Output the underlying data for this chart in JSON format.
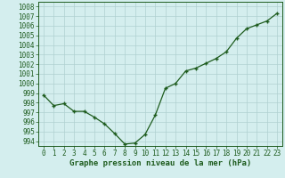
{
  "x": [
    0,
    1,
    2,
    3,
    4,
    5,
    6,
    7,
    8,
    9,
    10,
    11,
    12,
    13,
    14,
    15,
    16,
    17,
    18,
    19,
    20,
    21,
    22,
    23
  ],
  "y": [
    998.8,
    997.7,
    997.9,
    997.1,
    997.1,
    996.5,
    995.8,
    994.8,
    993.7,
    993.8,
    994.7,
    996.7,
    999.5,
    1000.0,
    1001.3,
    1001.6,
    1002.1,
    1002.6,
    1003.3,
    1004.7,
    1005.7,
    1006.1,
    1006.5,
    1007.3
  ],
  "line_color": "#1e5c1e",
  "marker_color": "#1e5c1e",
  "bg_color": "#d4eeee",
  "grid_color": "#b0d0d0",
  "xlabel": "Graphe pression niveau de la mer (hPa)",
  "xlabel_color": "#1e5c1e",
  "tick_color": "#1e5c1e",
  "ylim_min": 993.5,
  "ylim_max": 1008.5,
  "xtick_labels": [
    "0",
    "1",
    "2",
    "3",
    "4",
    "5",
    "6",
    "7",
    "8",
    "9",
    "10",
    "11",
    "12",
    "13",
    "14",
    "15",
    "16",
    "17",
    "18",
    "19",
    "20",
    "21",
    "22",
    "23"
  ],
  "ytick_labels": [
    "994",
    "995",
    "996",
    "997",
    "998",
    "999",
    "1000",
    "1001",
    "1002",
    "1003",
    "1004",
    "1005",
    "1006",
    "1007",
    "1008"
  ],
  "tick_fontsize": 5.5,
  "xlabel_fontsize": 6.5
}
